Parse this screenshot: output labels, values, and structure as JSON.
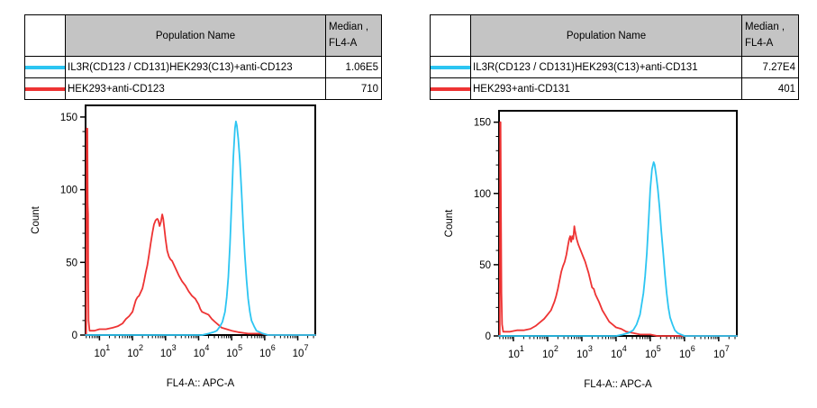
{
  "panels": [
    {
      "legend": {
        "population_header": "Population Name",
        "median_header_line1": "Median ,",
        "median_header_line2": "FL4-A",
        "rows": [
          {
            "color": "#2cc5f2",
            "name": "IL3R(CD123 / CD131)HEK293(C13)+anti-CD123",
            "median": "1.06E5"
          },
          {
            "color": "#ee3333",
            "name": "HEK293+anti-CD123",
            "median": "710"
          }
        ]
      }
    },
    {
      "legend": {
        "population_header": "Population Name",
        "median_header_line1": "Median ,",
        "median_header_line2": "FL4-A",
        "rows": [
          {
            "color": "#2cc5f2",
            "name": "IL3R(CD123 / CD131)HEK293(C13)+anti-CD131",
            "median": "7.27E4"
          },
          {
            "color": "#ee3333",
            "name": "HEK293+anti-CD131",
            "median": "401"
          }
        ]
      }
    }
  ],
  "chart_data": [
    {
      "type": "line",
      "subtype": "flow-cytometry-histogram-overlay",
      "title": "",
      "xlabel": "FL4-A:: APC-A",
      "ylabel": "Count",
      "x_scale": "log10",
      "x_range_log10": [
        0.58,
        7.53
      ],
      "x_major_ticks_log10": [
        1,
        2,
        3,
        4,
        5,
        6,
        7
      ],
      "x_tick_labels": [
        "10^1",
        "10^2",
        "10^3",
        "10^4",
        "10^5",
        "10^6",
        "10^7"
      ],
      "y_ticks": [
        0,
        50,
        100,
        150
      ],
      "y_minor_step": 10,
      "ylim": [
        0,
        158
      ],
      "grid": false,
      "legend_position": "table-above",
      "series": [
        {
          "name": "HEK293+anti-CD123",
          "color": "#ee3333",
          "median": "710",
          "points_log10x_count": [
            [
              0.58,
              0
            ],
            [
              0.6,
              0
            ],
            [
              0.615,
              142
            ],
            [
              0.635,
              142
            ],
            [
              0.645,
              90
            ],
            [
              0.655,
              83
            ],
            [
              0.66,
              40
            ],
            [
              0.67,
              10
            ],
            [
              0.7,
              3
            ],
            [
              0.85,
              3
            ],
            [
              1.0,
              4
            ],
            [
              1.2,
              4
            ],
            [
              1.4,
              5
            ],
            [
              1.55,
              6
            ],
            [
              1.7,
              8
            ],
            [
              1.8,
              11
            ],
            [
              1.9,
              13
            ],
            [
              2.0,
              16
            ],
            [
              2.05,
              20
            ],
            [
              2.1,
              24
            ],
            [
              2.15,
              26
            ],
            [
              2.2,
              27
            ],
            [
              2.3,
              32
            ],
            [
              2.35,
              37
            ],
            [
              2.4,
              43
            ],
            [
              2.45,
              48
            ],
            [
              2.5,
              55
            ],
            [
              2.55,
              63
            ],
            [
              2.6,
              70
            ],
            [
              2.65,
              76
            ],
            [
              2.7,
              79
            ],
            [
              2.75,
              80
            ],
            [
              2.78,
              79
            ],
            [
              2.82,
              75
            ],
            [
              2.86,
              78
            ],
            [
              2.9,
              83
            ],
            [
              2.93,
              80
            ],
            [
              2.97,
              72
            ],
            [
              3.0,
              66
            ],
            [
              3.05,
              58
            ],
            [
              3.1,
              54
            ],
            [
              3.15,
              52
            ],
            [
              3.2,
              51
            ],
            [
              3.3,
              46
            ],
            [
              3.4,
              41
            ],
            [
              3.5,
              37
            ],
            [
              3.6,
              34
            ],
            [
              3.7,
              30
            ],
            [
              3.8,
              27
            ],
            [
              3.9,
              25
            ],
            [
              4.0,
              21
            ],
            [
              4.05,
              18
            ],
            [
              4.1,
              16
            ],
            [
              4.2,
              15
            ],
            [
              4.3,
              14
            ],
            [
              4.4,
              11
            ],
            [
              4.5,
              9
            ],
            [
              4.6,
              7
            ],
            [
              4.7,
              5
            ],
            [
              4.85,
              4
            ],
            [
              5.0,
              3
            ],
            [
              5.2,
              2
            ],
            [
              5.5,
              1
            ],
            [
              5.9,
              1
            ],
            [
              6.1,
              0
            ],
            [
              7.53,
              0
            ]
          ]
        },
        {
          "name": "IL3R(CD123 / CD131)HEK293(C13)+anti-CD123",
          "color": "#2cc5f2",
          "median": "1.06E5",
          "points_log10x_count": [
            [
              0.58,
              0
            ],
            [
              4.1,
              0
            ],
            [
              4.3,
              1
            ],
            [
              4.45,
              2
            ],
            [
              4.55,
              3
            ],
            [
              4.65,
              6
            ],
            [
              4.72,
              9
            ],
            [
              4.8,
              16
            ],
            [
              4.85,
              26
            ],
            [
              4.9,
              40
            ],
            [
              4.95,
              62
            ],
            [
              5.0,
              92
            ],
            [
              5.05,
              122
            ],
            [
              5.1,
              142
            ],
            [
              5.13,
              147
            ],
            [
              5.16,
              144
            ],
            [
              5.2,
              135
            ],
            [
              5.25,
              120
            ],
            [
              5.3,
              98
            ],
            [
              5.35,
              75
            ],
            [
              5.4,
              55
            ],
            [
              5.45,
              38
            ],
            [
              5.5,
              25
            ],
            [
              5.55,
              16
            ],
            [
              5.6,
              10
            ],
            [
              5.68,
              6
            ],
            [
              5.75,
              3
            ],
            [
              5.85,
              2
            ],
            [
              5.95,
              1
            ],
            [
              6.1,
              0
            ],
            [
              7.53,
              0
            ]
          ]
        }
      ]
    },
    {
      "type": "line",
      "subtype": "flow-cytometry-histogram-overlay",
      "title": "",
      "xlabel": "FL4-A:: APC-A",
      "ylabel": "Count",
      "x_scale": "log10",
      "x_range_log10": [
        0.58,
        7.53
      ],
      "x_major_ticks_log10": [
        1,
        2,
        3,
        4,
        5,
        6,
        7
      ],
      "x_tick_labels": [
        "10^1",
        "10^2",
        "10^3",
        "10^4",
        "10^5",
        "10^6",
        "10^7"
      ],
      "y_ticks": [
        0,
        50,
        100,
        150
      ],
      "y_minor_step": 10,
      "ylim": [
        0,
        158
      ],
      "grid": false,
      "legend_position": "table-above",
      "series": [
        {
          "name": "HEK293+anti-CD131",
          "color": "#ee3333",
          "median": "401",
          "points_log10x_count": [
            [
              0.58,
              0
            ],
            [
              0.6,
              0
            ],
            [
              0.612,
              150
            ],
            [
              0.625,
              150
            ],
            [
              0.635,
              96
            ],
            [
              0.65,
              30
            ],
            [
              0.67,
              8
            ],
            [
              0.7,
              3
            ],
            [
              0.9,
              3
            ],
            [
              1.1,
              4
            ],
            [
              1.3,
              4
            ],
            [
              1.5,
              5
            ],
            [
              1.65,
              7
            ],
            [
              1.8,
              10
            ],
            [
              1.9,
              12
            ],
            [
              2.0,
              15
            ],
            [
              2.1,
              18
            ],
            [
              2.2,
              24
            ],
            [
              2.25,
              28
            ],
            [
              2.3,
              33
            ],
            [
              2.35,
              39
            ],
            [
              2.4,
              45
            ],
            [
              2.45,
              49
            ],
            [
              2.5,
              52
            ],
            [
              2.55,
              57
            ],
            [
              2.6,
              64
            ],
            [
              2.63,
              68
            ],
            [
              2.66,
              70
            ],
            [
              2.69,
              66
            ],
            [
              2.72,
              70
            ],
            [
              2.75,
              68
            ],
            [
              2.78,
              77
            ],
            [
              2.8,
              74
            ],
            [
              2.85,
              68
            ],
            [
              2.9,
              64
            ],
            [
              3.0,
              58
            ],
            [
              3.05,
              55
            ],
            [
              3.1,
              52
            ],
            [
              3.15,
              48
            ],
            [
              3.2,
              44
            ],
            [
              3.25,
              39
            ],
            [
              3.3,
              34
            ],
            [
              3.35,
              33
            ],
            [
              3.4,
              29
            ],
            [
              3.5,
              24
            ],
            [
              3.6,
              18
            ],
            [
              3.7,
              14
            ],
            [
              3.8,
              10
            ],
            [
              3.9,
              8
            ],
            [
              4.0,
              6
            ],
            [
              4.15,
              5
            ],
            [
              4.3,
              3
            ],
            [
              4.5,
              2
            ],
            [
              4.7,
              1
            ],
            [
              5.0,
              1
            ],
            [
              5.2,
              0
            ],
            [
              7.53,
              0
            ]
          ]
        },
        {
          "name": "IL3R(CD123 / CD131)HEK293(C13)+anti-CD131",
          "color": "#2cc5f2",
          "median": "7.27E4",
          "points_log10x_count": [
            [
              0.58,
              0
            ],
            [
              4.0,
              0
            ],
            [
              4.2,
              1
            ],
            [
              4.35,
              2
            ],
            [
              4.5,
              4
            ],
            [
              4.6,
              8
            ],
            [
              4.7,
              15
            ],
            [
              4.8,
              30
            ],
            [
              4.85,
              42
            ],
            [
              4.9,
              58
            ],
            [
              4.95,
              80
            ],
            [
              5.0,
              103
            ],
            [
              5.05,
              117
            ],
            [
              5.1,
              122
            ],
            [
              5.13,
              120
            ],
            [
              5.17,
              113
            ],
            [
              5.22,
              103
            ],
            [
              5.27,
              90
            ],
            [
              5.32,
              74
            ],
            [
              5.38,
              58
            ],
            [
              5.43,
              43
            ],
            [
              5.48,
              30
            ],
            [
              5.53,
              20
            ],
            [
              5.58,
              13
            ],
            [
              5.65,
              8
            ],
            [
              5.72,
              4
            ],
            [
              5.8,
              2
            ],
            [
              5.9,
              1
            ],
            [
              6.0,
              0
            ],
            [
              7.53,
              0
            ]
          ]
        }
      ]
    }
  ]
}
